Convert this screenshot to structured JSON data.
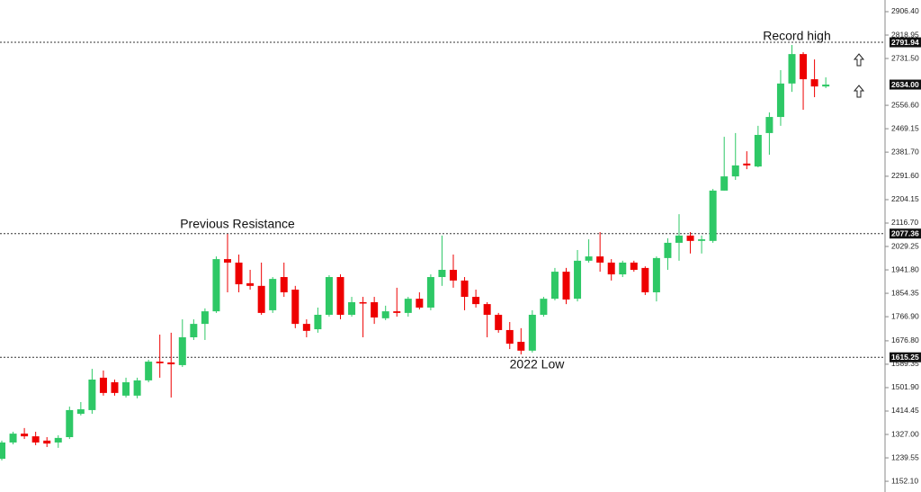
{
  "chart_data": {
    "type": "candlestick",
    "up_color": "#2ec866",
    "down_color": "#ee0000",
    "open": [
      1236,
      1297,
      1330,
      1320,
      1304,
      1297,
      1317,
      1404,
      1418,
      1539,
      1522,
      1472,
      1472,
      1529,
      1599,
      1596,
      1586,
      1690,
      1740,
      1787,
      1982,
      1969,
      1892,
      1882,
      1791,
      1915,
      1868,
      1740,
      1720,
      1774,
      1915,
      1774,
      1821,
      1821,
      1761,
      1787,
      1781,
      1834,
      1801,
      1915,
      1942,
      1902,
      1841,
      1814,
      1774,
      1717,
      1673,
      1640,
      1774,
      1834,
      1935,
      1834,
      1976,
      1992,
      1969,
      1925,
      1969,
      1949,
      1858,
      1986,
      2043,
      2070,
      2050,
      2050,
      2238,
      2291,
      2339,
      2328,
      2453,
      2513,
      2638,
      2748,
      2654,
      2627
    ],
    "high": [
      1304,
      1337,
      1351,
      1337,
      1317,
      1324,
      1431,
      1448,
      1572,
      1566,
      1532,
      1539,
      1539,
      1606,
      1700,
      1707,
      1757,
      1757,
      1798,
      1992,
      2076,
      1999,
      1942,
      1969,
      1915,
      1969,
      1882,
      1757,
      1801,
      1922,
      1925,
      1841,
      1841,
      1841,
      1808,
      1875,
      1841,
      1858,
      1925,
      2070,
      1999,
      1915,
      1868,
      1821,
      1781,
      1747,
      1724,
      1791,
      1841,
      1949,
      1949,
      2016,
      2056,
      2083,
      1982,
      1976,
      1976,
      1955,
      1992,
      2060,
      2150,
      2083,
      2070,
      2244,
      2439,
      2453,
      2385,
      2480,
      2530,
      2688,
      2782,
      2755,
      2728,
      2661
    ],
    "low": [
      1230,
      1290,
      1310,
      1287,
      1280,
      1277,
      1310,
      1398,
      1404,
      1472,
      1472,
      1465,
      1462,
      1522,
      1539,
      1465,
      1579,
      1680,
      1680,
      1781,
      1858,
      1858,
      1868,
      1774,
      1781,
      1841,
      1724,
      1690,
      1707,
      1767,
      1757,
      1767,
      1690,
      1740,
      1754,
      1767,
      1767,
      1794,
      1791,
      1882,
      1875,
      1791,
      1801,
      1690,
      1707,
      1646,
      1626,
      1633,
      1767,
      1828,
      1814,
      1824,
      1969,
      1935,
      1902,
      1915,
      1935,
      1848,
      1824,
      1942,
      1976,
      2003,
      2003,
      2043,
      2238,
      2278,
      2318,
      2325,
      2372,
      2480,
      2607,
      2540,
      2587,
      2621
    ],
    "close": [
      1297,
      1330,
      1320,
      1297,
      1293,
      1314,
      1418,
      1421,
      1532,
      1482,
      1482,
      1522,
      1529,
      1599,
      1593,
      1589,
      1690,
      1740,
      1787,
      1982,
      1969,
      1888,
      1882,
      1781,
      1908,
      1858,
      1740,
      1714,
      1774,
      1915,
      1774,
      1821,
      1818,
      1764,
      1787,
      1781,
      1834,
      1801,
      1915,
      1942,
      1902,
      1841,
      1814,
      1774,
      1717,
      1666,
      1640,
      1774,
      1834,
      1935,
      1831,
      1976,
      1992,
      1969,
      1925,
      1969,
      1942,
      1858,
      1986,
      2043,
      2070,
      2050,
      2056,
      2238,
      2291,
      2332,
      2332,
      2446,
      2513,
      2638,
      2748,
      2654,
      2627,
      2634
    ],
    "ylim": [
      1112,
      2950
    ],
    "yticks": [
      {
        "value": 2906.4,
        "label": "2906.40"
      },
      2818.95,
      {
        "value": 2731.5,
        "label": "2731.50"
      },
      {
        "value": 2556.6,
        "label": "2556.60"
      },
      2469.15,
      {
        "value": 2381.7,
        "label": "2381.70"
      },
      {
        "value": 2291.6,
        "label": "2291.60"
      },
      2204.15,
      {
        "value": 2116.7,
        "label": "2116.70"
      },
      2029.25,
      {
        "value": 1941.8,
        "label": "1941.80"
      },
      1854.35,
      {
        "value": 1766.9,
        "label": "1766.90"
      },
      {
        "value": 1676.8,
        "label": "1676.80"
      },
      1589.35,
      {
        "value": 1501.9,
        "label": "1501.90"
      },
      1414.45,
      {
        "value": 1327.0,
        "label": "1327.00"
      },
      1239.55,
      {
        "value": 1152.1,
        "label": "1152.10"
      }
    ],
    "price_lines": [
      {
        "value": 2791.94,
        "label": "2791.94",
        "dotted": true
      },
      {
        "value": 2634.0,
        "label": "2634.00",
        "dotted": false
      },
      {
        "value": 2077.36,
        "label": "2077.36",
        "dotted": true
      },
      {
        "value": 1615.25,
        "label": "1615.25",
        "dotted": true
      }
    ],
    "annotations": [
      "Record high",
      "Previous Resistance",
      "2022 Low"
    ]
  }
}
